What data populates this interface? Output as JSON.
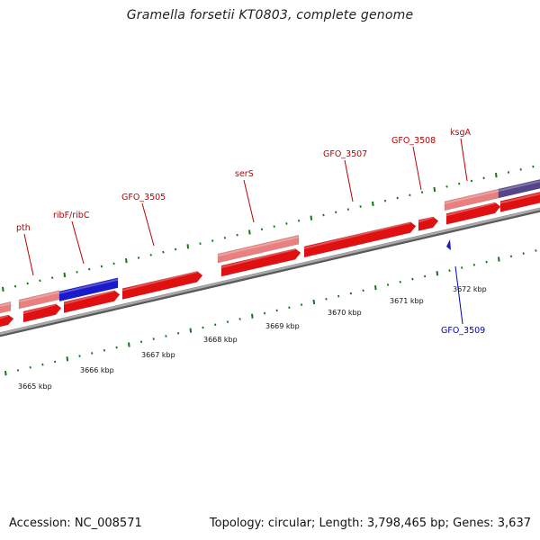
{
  "title": "Gramella forsetii KT0803, complete genome",
  "footer": {
    "accession": "Accession: NC_008571",
    "stats": "Topology: circular; Length: 3,798,465 bp; Genes: 3,637"
  },
  "colors": {
    "forward_cds": "#e01010",
    "rna_or_highlight": "#e88080",
    "reverse_marker": "#1a1acc",
    "purple": "#55458a",
    "backbone": "#8c8c8c",
    "ticks": "#117711",
    "upper_label": "#bb0000",
    "lower_label": "#0000bb"
  },
  "kbp_labels": [
    "3665 kbp",
    "3666 kbp",
    "3667 kbp",
    "3668 kbp",
    "3669 kbp",
    "3670 kbp",
    "3671 kbp",
    "3672 kbp"
  ],
  "gene_labels_top": [
    "pth",
    "ribF/ribC",
    "GFO_3505",
    "serS",
    "GFO_3507",
    "GFO_3508",
    "ksgA"
  ],
  "gene_labels_bottom": [
    "GFO_3509"
  ]
}
